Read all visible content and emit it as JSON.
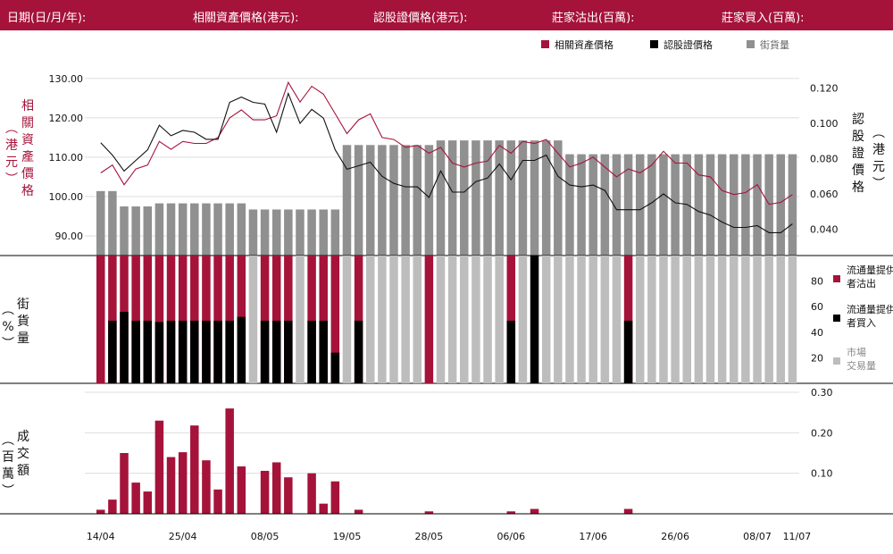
{
  "header": {
    "date_label": "日期(日/月/年):",
    "underlying_label": "相關資產價格(港元):",
    "warrant_label": "認股證價格(港元):",
    "mm_sell_label": "莊家沽出(百萬):",
    "mm_buy_label": "莊家買入(百萬):"
  },
  "colors": {
    "brand": "#a5133a",
    "underlying": "#a5133a",
    "warrant": "#111111",
    "street": "#909090",
    "mm_sell": "#a5133a",
    "mm_buy": "#000000",
    "market": "#bdbdbd"
  },
  "y_titles": {
    "left_top": "相關資產價格",
    "left_top_unit": "(港元)",
    "right_top": "認股證價格",
    "right_top_unit": "(港元)",
    "left_mid": "街貨量",
    "left_mid_unit": "(%)",
    "left_bottom": "成交額",
    "left_bottom_unit": "(百萬)"
  },
  "chart_data": {
    "type": "combo",
    "legend_top": [
      "相關資產價格",
      "認股證價格",
      "街貨量"
    ],
    "legend_mid": [
      "流通量提供者沽出",
      "流通量提供者買入",
      "市場交易量"
    ],
    "x_tick_labels": [
      "14/04",
      "25/04",
      "08/05",
      "19/05",
      "28/05",
      "06/06",
      "17/06",
      "26/06",
      "08/07",
      "11/07"
    ],
    "x_tick_index": [
      0,
      7,
      14,
      21,
      28,
      35,
      42,
      49,
      56,
      59
    ],
    "y_left_ticks": [
      "130.00",
      "120.00",
      "110.00",
      "100.00",
      "90.00"
    ],
    "y_left_range": [
      85,
      132
    ],
    "y_right_ticks": [
      "0.120",
      "0.100",
      "0.080",
      "0.060",
      "0.040"
    ],
    "y_right_range": [
      0.025,
      0.13
    ],
    "y_mid_ticks": [
      "80",
      "60",
      "40",
      "20"
    ],
    "y_mid_range": [
      0,
      100
    ],
    "y_bottom_ticks": [
      "0.30",
      "0.20",
      "0.10"
    ],
    "y_bottom_range": [
      0,
      0.3
    ],
    "underlying_price": [
      106,
      108,
      103,
      107,
      108,
      114,
      112,
      114,
      113.5,
      113.5,
      115,
      120,
      122,
      119.5,
      119.5,
      120.5,
      129,
      124,
      128,
      126,
      121,
      116,
      119.5,
      121,
      115,
      114.5,
      112.5,
      113,
      111,
      112.5,
      108.5,
      107.5,
      108.5,
      109,
      113,
      111,
      114,
      113.5,
      114.5,
      111,
      107.5,
      108.5,
      110,
      107.5,
      105,
      107,
      106,
      108,
      111.5,
      108.5,
      108.5,
      105.5,
      105,
      101.5,
      100.5,
      101,
      103,
      98,
      98.5,
      100.5
    ],
    "warrant_price": [
      0.089,
      0.082,
      0.073,
      0.079,
      0.085,
      0.099,
      0.093,
      0.096,
      0.095,
      0.091,
      0.091,
      0.112,
      0.115,
      0.112,
      0.111,
      0.095,
      0.117,
      0.1,
      0.108,
      0.103,
      0.085,
      0.074,
      0.076,
      0.078,
      0.07,
      0.066,
      0.064,
      0.064,
      0.058,
      0.073,
      0.061,
      0.061,
      0.067,
      0.069,
      0.077,
      0.068,
      0.079,
      0.079,
      0.082,
      0.07,
      0.065,
      0.064,
      0.065,
      0.062,
      0.051,
      0.051,
      0.051,
      0.055,
      0.06,
      0.055,
      0.054,
      0.05,
      0.048,
      0.044,
      0.041,
      0.041,
      0.042,
      0.038,
      0.038,
      0.043
    ],
    "street_volume_pct": [
      42,
      42,
      32,
      32,
      32,
      34,
      34,
      34,
      34,
      34,
      34,
      34,
      34,
      30,
      30,
      30,
      30,
      30,
      30,
      30,
      30,
      72,
      72,
      72,
      72,
      72,
      72,
      72,
      72,
      75,
      75,
      75,
      75,
      75,
      75,
      75,
      75,
      75,
      75,
      75,
      66,
      66,
      66,
      66,
      66,
      66,
      66,
      66,
      66,
      66,
      66,
      66,
      66,
      66,
      66,
      66,
      66,
      66,
      66,
      66
    ],
    "mm_sell_pct": [
      100,
      100,
      100,
      100,
      100,
      100,
      100,
      100,
      100,
      100,
      100,
      100,
      100,
      0,
      100,
      100,
      100,
      0,
      100,
      100,
      100,
      0,
      100,
      0,
      0,
      0,
      0,
      0,
      100,
      0,
      0,
      0,
      0,
      0,
      0,
      100,
      0,
      0,
      0,
      0,
      0,
      0,
      0,
      0,
      0,
      100,
      0,
      0,
      0,
      0,
      0,
      0,
      0,
      0,
      0,
      0,
      0,
      0,
      0,
      0
    ],
    "mm_buy_pct": [
      0,
      49,
      56,
      49,
      49,
      48,
      49,
      49,
      49,
      49,
      49,
      49,
      52,
      0,
      49,
      49,
      49,
      0,
      49,
      49,
      24,
      0,
      49,
      0,
      0,
      0,
      0,
      0,
      0,
      0,
      0,
      0,
      0,
      0,
      0,
      49,
      0,
      100,
      0,
      0,
      0,
      0,
      0,
      0,
      0,
      49,
      0,
      0,
      0,
      0,
      0,
      0,
      0,
      0,
      0,
      0,
      0,
      0,
      0,
      0
    ],
    "market_volume_pct": [
      0,
      0,
      0,
      0,
      0,
      0,
      0,
      0,
      0,
      0,
      0,
      0,
      0,
      100,
      0,
      0,
      0,
      100,
      0,
      0,
      0,
      100,
      0,
      100,
      100,
      100,
      100,
      100,
      0,
      100,
      100,
      100,
      100,
      100,
      100,
      0,
      100,
      0,
      100,
      100,
      100,
      100,
      100,
      100,
      100,
      0,
      100,
      100,
      100,
      100,
      100,
      100,
      100,
      100,
      100,
      100,
      100,
      100,
      100,
      100
    ],
    "turnover": [
      0.01,
      0.035,
      0.15,
      0.077,
      0.055,
      0.23,
      0.14,
      0.152,
      0.218,
      0.132,
      0.06,
      0.26,
      0.117,
      0,
      0.106,
      0.127,
      0.09,
      0,
      0.1,
      0.025,
      0.08,
      0,
      0.01,
      0,
      0,
      0,
      0,
      0,
      0.006,
      0,
      0,
      0,
      0,
      0,
      0,
      0.006,
      0,
      0.012,
      0,
      0,
      0,
      0,
      0,
      0,
      0,
      0.012,
      0,
      0,
      0,
      0,
      0,
      0,
      0,
      0,
      0,
      0,
      0,
      0,
      0,
      0
    ]
  }
}
